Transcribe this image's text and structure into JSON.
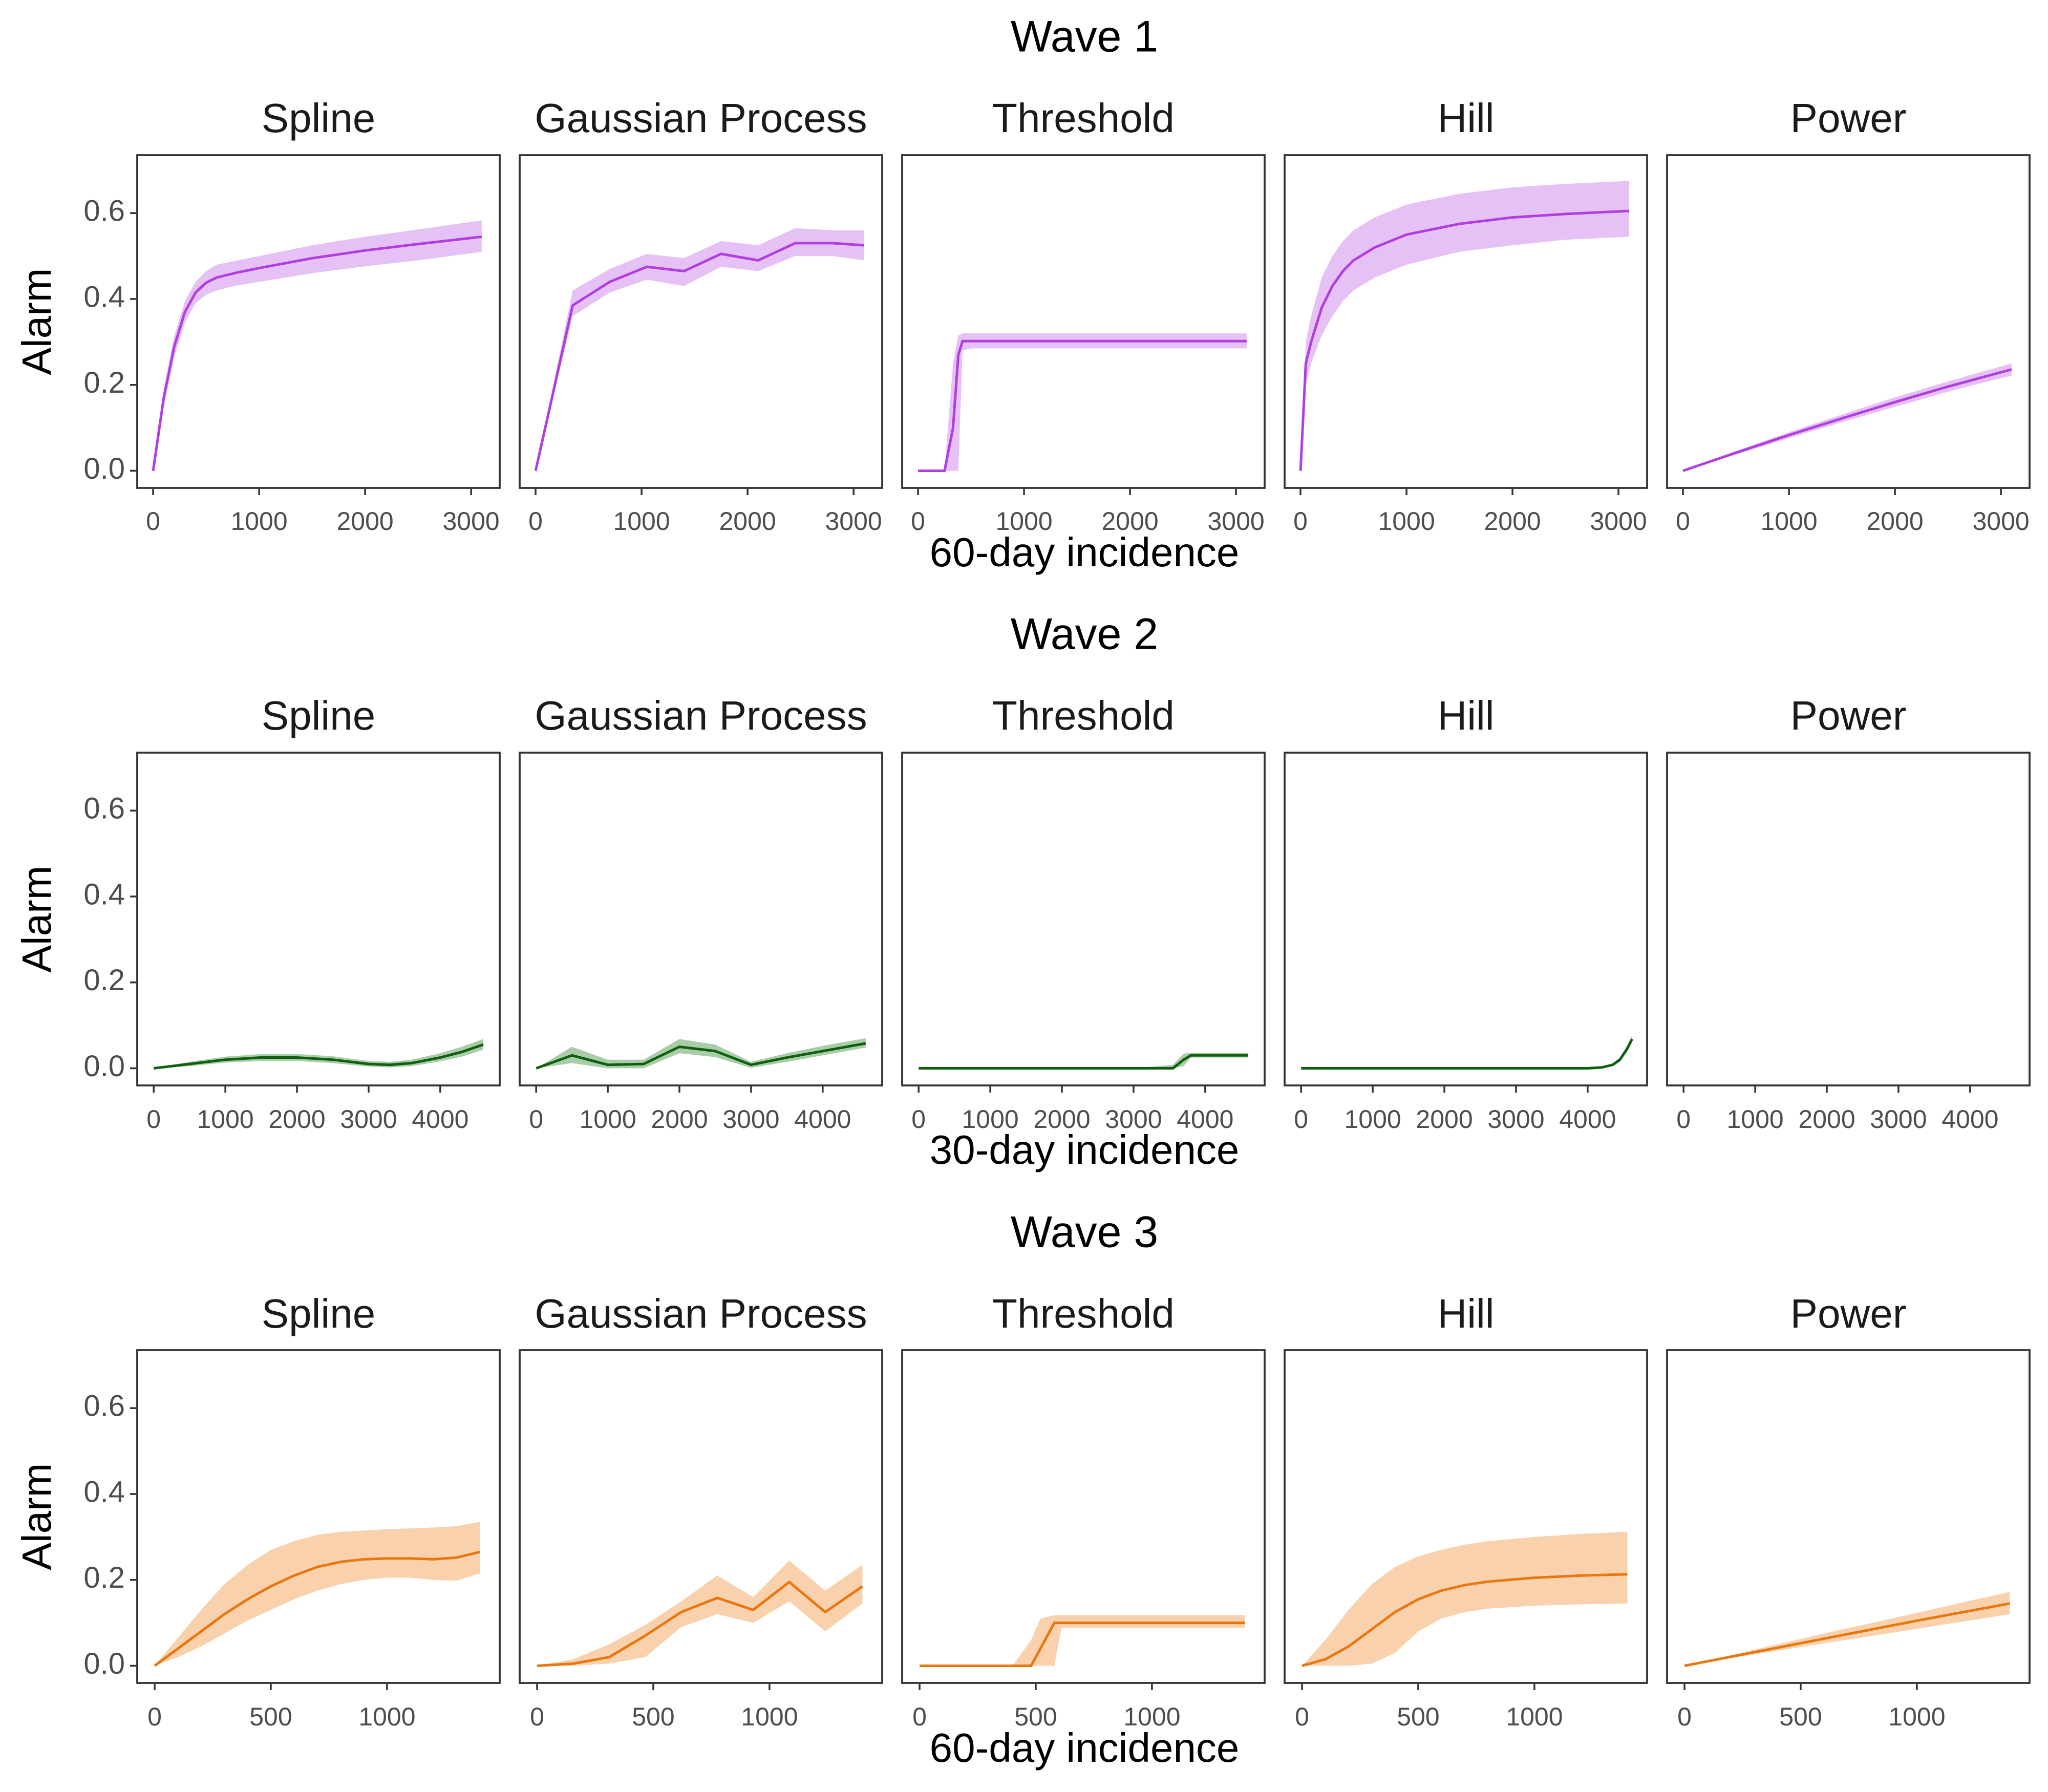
{
  "chart_data": [
    {
      "type": "line",
      "title": "Wave 1",
      "xlabel": "60-day incidence",
      "ylabel": "Alarm",
      "color": "#b03ee0",
      "band_color": "#e6c1f5",
      "xlim": [
        -150,
        3270
      ],
      "ylim": [
        -0.04,
        0.735
      ],
      "xticks": [
        0,
        1000,
        2000,
        3000
      ],
      "xtick_labels": [
        "0",
        "1000",
        "2000",
        "3000"
      ],
      "yticks": [
        0.0,
        0.2,
        0.4,
        0.6
      ],
      "ytick_labels": [
        "0.0",
        "0.2",
        "0.4",
        "0.6"
      ],
      "panels": [
        {
          "name": "Spline",
          "x": [
            0,
            100,
            200,
            300,
            400,
            500,
            600,
            800,
            1000,
            1500,
            2000,
            2500,
            3100
          ],
          "y": [
            0.0,
            0.17,
            0.29,
            0.37,
            0.415,
            0.438,
            0.45,
            0.462,
            0.472,
            0.495,
            0.513,
            0.528,
            0.545
          ],
          "lower": [
            0.0,
            0.15,
            0.265,
            0.345,
            0.39,
            0.41,
            0.42,
            0.432,
            0.44,
            0.46,
            0.476,
            0.49,
            0.51
          ],
          "upper": [
            0.0,
            0.19,
            0.315,
            0.395,
            0.44,
            0.465,
            0.48,
            0.49,
            0.5,
            0.525,
            0.545,
            0.562,
            0.583
          ]
        },
        {
          "name": "Gaussian Process",
          "x": [
            0,
            350,
            700,
            1050,
            1400,
            1750,
            2100,
            2450,
            2800,
            3100
          ],
          "y": [
            0.0,
            0.385,
            0.44,
            0.475,
            0.465,
            0.505,
            0.49,
            0.53,
            0.53,
            0.525
          ],
          "lower": [
            0.0,
            0.36,
            0.415,
            0.445,
            0.43,
            0.475,
            0.465,
            0.5,
            0.5,
            0.49
          ],
          "upper": [
            0.0,
            0.42,
            0.47,
            0.505,
            0.495,
            0.535,
            0.525,
            0.565,
            0.56,
            0.56
          ]
        },
        {
          "name": "Threshold",
          "x": [
            0,
            250,
            330,
            380,
            420,
            500,
            1000,
            2000,
            3100
          ],
          "y": [
            0.0,
            0.0,
            0.1,
            0.27,
            0.302,
            0.302,
            0.302,
            0.302,
            0.302
          ],
          "lower": [
            0.0,
            0.0,
            0.0,
            0.0,
            0.28,
            0.285,
            0.285,
            0.285,
            0.285
          ],
          "upper": [
            0.0,
            0.0,
            0.25,
            0.315,
            0.32,
            0.32,
            0.32,
            0.32,
            0.32
          ]
        },
        {
          "name": "Hill",
          "x": [
            0,
            50,
            100,
            200,
            300,
            400,
            500,
            700,
            1000,
            1500,
            2000,
            2500,
            3100
          ],
          "y": [
            0.0,
            0.25,
            0.3,
            0.38,
            0.43,
            0.465,
            0.49,
            0.52,
            0.55,
            0.575,
            0.59,
            0.598,
            0.605
          ],
          "lower": [
            0.0,
            0.2,
            0.25,
            0.315,
            0.36,
            0.395,
            0.42,
            0.45,
            0.48,
            0.51,
            0.525,
            0.538,
            0.545
          ],
          "upper": [
            0.0,
            0.3,
            0.36,
            0.45,
            0.5,
            0.535,
            0.56,
            0.59,
            0.62,
            0.645,
            0.66,
            0.668,
            0.675
          ]
        },
        {
          "name": "Power",
          "x": [
            0,
            500,
            1000,
            1500,
            2000,
            2500,
            3100
          ],
          "y": [
            0.0,
            0.042,
            0.083,
            0.122,
            0.16,
            0.196,
            0.236
          ],
          "lower": [
            0.0,
            0.038,
            0.076,
            0.113,
            0.149,
            0.184,
            0.222
          ],
          "upper": [
            0.0,
            0.046,
            0.09,
            0.131,
            0.171,
            0.208,
            0.25
          ]
        }
      ]
    },
    {
      "type": "line",
      "title": "Wave 2",
      "xlabel": "30-day incidence",
      "ylabel": "Alarm",
      "color": "#0f5f0f",
      "band_color": "#a9cda9",
      "xlim": [
        -230,
        4830
      ],
      "ylim": [
        -0.04,
        0.735
      ],
      "xticks": [
        0,
        1000,
        2000,
        3000,
        4000
      ],
      "xtick_labels": [
        "0",
        "1000",
        "2000",
        "3000",
        "4000"
      ],
      "yticks": [
        0.0,
        0.2,
        0.4,
        0.6
      ],
      "ytick_labels": [
        "0.0",
        "0.2",
        "0.4",
        "0.6"
      ],
      "panels": [
        {
          "name": "Spline",
          "x": [
            0,
            500,
            1000,
            1500,
            2000,
            2500,
            3000,
            3300,
            3600,
            4000,
            4300,
            4600
          ],
          "y": [
            0.0,
            0.01,
            0.02,
            0.025,
            0.025,
            0.02,
            0.01,
            0.008,
            0.012,
            0.025,
            0.038,
            0.055
          ],
          "lower": [
            0.0,
            0.005,
            0.013,
            0.017,
            0.017,
            0.012,
            0.004,
            0.002,
            0.005,
            0.016,
            0.027,
            0.043
          ],
          "upper": [
            0.0,
            0.015,
            0.027,
            0.033,
            0.033,
            0.028,
            0.017,
            0.015,
            0.02,
            0.035,
            0.05,
            0.068
          ]
        },
        {
          "name": "Gaussian Process",
          "x": [
            0,
            500,
            1000,
            1500,
            2000,
            2500,
            3000,
            3500,
            4000,
            4600
          ],
          "y": [
            0.0,
            0.03,
            0.008,
            0.01,
            0.05,
            0.04,
            0.008,
            0.025,
            0.04,
            0.058
          ],
          "lower": [
            0.0,
            0.012,
            0.0,
            0.0,
            0.035,
            0.026,
            0.001,
            0.015,
            0.03,
            0.048
          ],
          "upper": [
            0.0,
            0.05,
            0.02,
            0.02,
            0.068,
            0.055,
            0.015,
            0.035,
            0.052,
            0.07
          ]
        },
        {
          "name": "Threshold",
          "x": [
            0,
            1000,
            2000,
            3000,
            3550,
            3700,
            3800,
            4000,
            4600
          ],
          "y": [
            0.0,
            0.0,
            0.0,
            0.0,
            0.0,
            0.02,
            0.03,
            0.03,
            0.03
          ],
          "lower": [
            0.0,
            0.0,
            0.0,
            0.0,
            0.0,
            0.005,
            0.025,
            0.025,
            0.025
          ],
          "upper": [
            0.0,
            0.0,
            0.0,
            0.0,
            0.008,
            0.034,
            0.036,
            0.036,
            0.036
          ]
        },
        {
          "name": "Hill",
          "x": [
            0,
            1000,
            2000,
            3000,
            4000,
            4200,
            4350,
            4450,
            4550,
            4620
          ],
          "y": [
            0.0,
            0.0,
            0.0,
            0.0,
            0.0,
            0.002,
            0.008,
            0.02,
            0.045,
            0.068
          ],
          "lower": [
            0.0,
            0.0,
            0.0,
            0.0,
            0.0,
            0.0,
            0.005,
            0.015,
            0.038,
            0.06
          ],
          "upper": [
            0.0,
            0.0,
            0.0,
            0.0,
            0.0,
            0.004,
            0.011,
            0.025,
            0.052,
            0.076
          ]
        },
        {
          "name": "Power",
          "x": [],
          "y": [],
          "lower": [],
          "upper": []
        }
      ]
    },
    {
      "type": "line",
      "title": "Wave 3",
      "xlabel": "60-day incidence",
      "ylabel": "Alarm",
      "color": "#e8770f",
      "band_color": "#f9d2ad",
      "xlim": [
        -75,
        1485
      ],
      "ylim": [
        -0.04,
        0.735
      ],
      "xticks": [
        0,
        500,
        1000
      ],
      "xtick_labels": [
        "0",
        "500",
        "1000"
      ],
      "yticks": [
        0.0,
        0.2,
        0.4,
        0.6
      ],
      "ytick_labels": [
        "0.0",
        "0.2",
        "0.4",
        "0.6"
      ],
      "panels": [
        {
          "name": "Spline",
          "x": [
            0,
            100,
            200,
            300,
            400,
            500,
            600,
            700,
            800,
            900,
            1000,
            1100,
            1200,
            1300,
            1400
          ],
          "y": [
            0.0,
            0.04,
            0.08,
            0.12,
            0.155,
            0.185,
            0.21,
            0.23,
            0.242,
            0.248,
            0.25,
            0.25,
            0.248,
            0.252,
            0.265
          ],
          "lower": [
            0.0,
            0.02,
            0.045,
            0.075,
            0.105,
            0.13,
            0.155,
            0.175,
            0.19,
            0.2,
            0.205,
            0.205,
            0.2,
            0.198,
            0.215
          ],
          "upper": [
            0.0,
            0.065,
            0.13,
            0.19,
            0.235,
            0.27,
            0.29,
            0.305,
            0.312,
            0.315,
            0.318,
            0.32,
            0.322,
            0.325,
            0.335
          ]
        },
        {
          "name": "Gaussian Process",
          "x": [
            0,
            155,
            310,
            465,
            620,
            775,
            930,
            1085,
            1240,
            1400
          ],
          "y": [
            0.0,
            0.005,
            0.02,
            0.07,
            0.125,
            0.158,
            0.13,
            0.195,
            0.125,
            0.185
          ],
          "lower": [
            0.0,
            0.0,
            0.005,
            0.02,
            0.09,
            0.12,
            0.1,
            0.15,
            0.08,
            0.145
          ],
          "upper": [
            0.0,
            0.015,
            0.05,
            0.095,
            0.15,
            0.21,
            0.16,
            0.245,
            0.175,
            0.235
          ]
        },
        {
          "name": "Threshold",
          "x": [
            0,
            400,
            480,
            520,
            580,
            610,
            700,
            1000,
            1400
          ],
          "y": [
            0.0,
            0.0,
            0.0,
            0.04,
            0.1,
            0.1,
            0.1,
            0.1,
            0.1
          ],
          "lower": [
            0.0,
            0.0,
            0.0,
            0.0,
            0.0,
            0.088,
            0.088,
            0.088,
            0.088
          ],
          "upper": [
            0.0,
            0.0,
            0.06,
            0.11,
            0.118,
            0.118,
            0.118,
            0.118,
            0.118
          ]
        },
        {
          "name": "Hill",
          "x": [
            0,
            100,
            200,
            300,
            400,
            500,
            600,
            700,
            800,
            1000,
            1200,
            1400
          ],
          "y": [
            0.0,
            0.015,
            0.045,
            0.085,
            0.125,
            0.155,
            0.175,
            0.188,
            0.196,
            0.205,
            0.21,
            0.213
          ],
          "lower": [
            0.0,
            0.0,
            0.0,
            0.005,
            0.03,
            0.08,
            0.11,
            0.125,
            0.133,
            0.14,
            0.143,
            0.145
          ],
          "upper": [
            0.0,
            0.06,
            0.13,
            0.19,
            0.23,
            0.255,
            0.27,
            0.282,
            0.29,
            0.3,
            0.307,
            0.312
          ]
        },
        {
          "name": "Power",
          "x": [
            0,
            200,
            400,
            600,
            800,
            1000,
            1200,
            1400
          ],
          "y": [
            0.0,
            0.021,
            0.042,
            0.063,
            0.084,
            0.105,
            0.125,
            0.145
          ],
          "lower": [
            0.0,
            0.018,
            0.035,
            0.052,
            0.069,
            0.086,
            0.103,
            0.12
          ],
          "upper": [
            0.0,
            0.025,
            0.05,
            0.075,
            0.099,
            0.123,
            0.148,
            0.172
          ]
        }
      ]
    }
  ]
}
